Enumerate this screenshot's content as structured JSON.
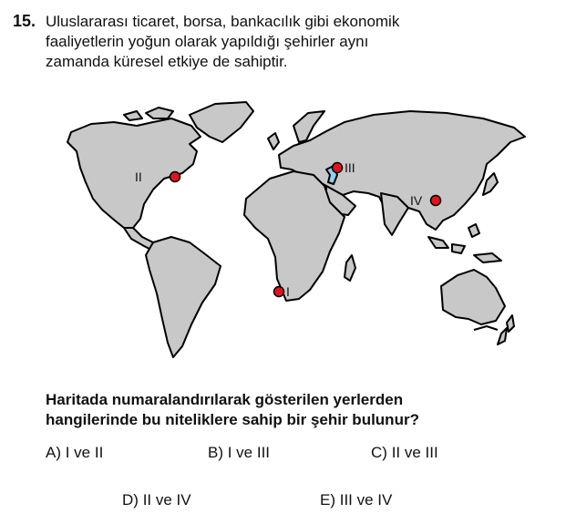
{
  "question": {
    "number": "15.",
    "stem_lines": [
      "Uluslararası ticaret, borsa, bankacılık gibi ekonomik",
      "faaliyetlerin yoğun olarak yapıldığı şehirler aynı",
      "zamanda küresel etkiye de sahiptir."
    ],
    "prompt_lines": [
      "Haritada numaralandırılarak gösterilen yerlerden",
      "hangilerinde bu niteliklere sahip bir şehir bulunur?"
    ]
  },
  "map": {
    "colors": {
      "land": "#c8c8c8",
      "outline": "#000000",
      "marker": "#e0141e",
      "water": "#8fd0ee"
    },
    "markers": [
      {
        "id": "I",
        "label": "I"
      },
      {
        "id": "II",
        "label": "II"
      },
      {
        "id": "III",
        "label": "III"
      },
      {
        "id": "IV",
        "label": "IV"
      }
    ]
  },
  "options": [
    {
      "letter": "A)",
      "text": "I ve II"
    },
    {
      "letter": "B)",
      "text": "I ve III"
    },
    {
      "letter": "C)",
      "text": "II ve III"
    },
    {
      "letter": "D)",
      "text": "II ve IV"
    },
    {
      "letter": "E)",
      "text": "III ve IV"
    }
  ]
}
